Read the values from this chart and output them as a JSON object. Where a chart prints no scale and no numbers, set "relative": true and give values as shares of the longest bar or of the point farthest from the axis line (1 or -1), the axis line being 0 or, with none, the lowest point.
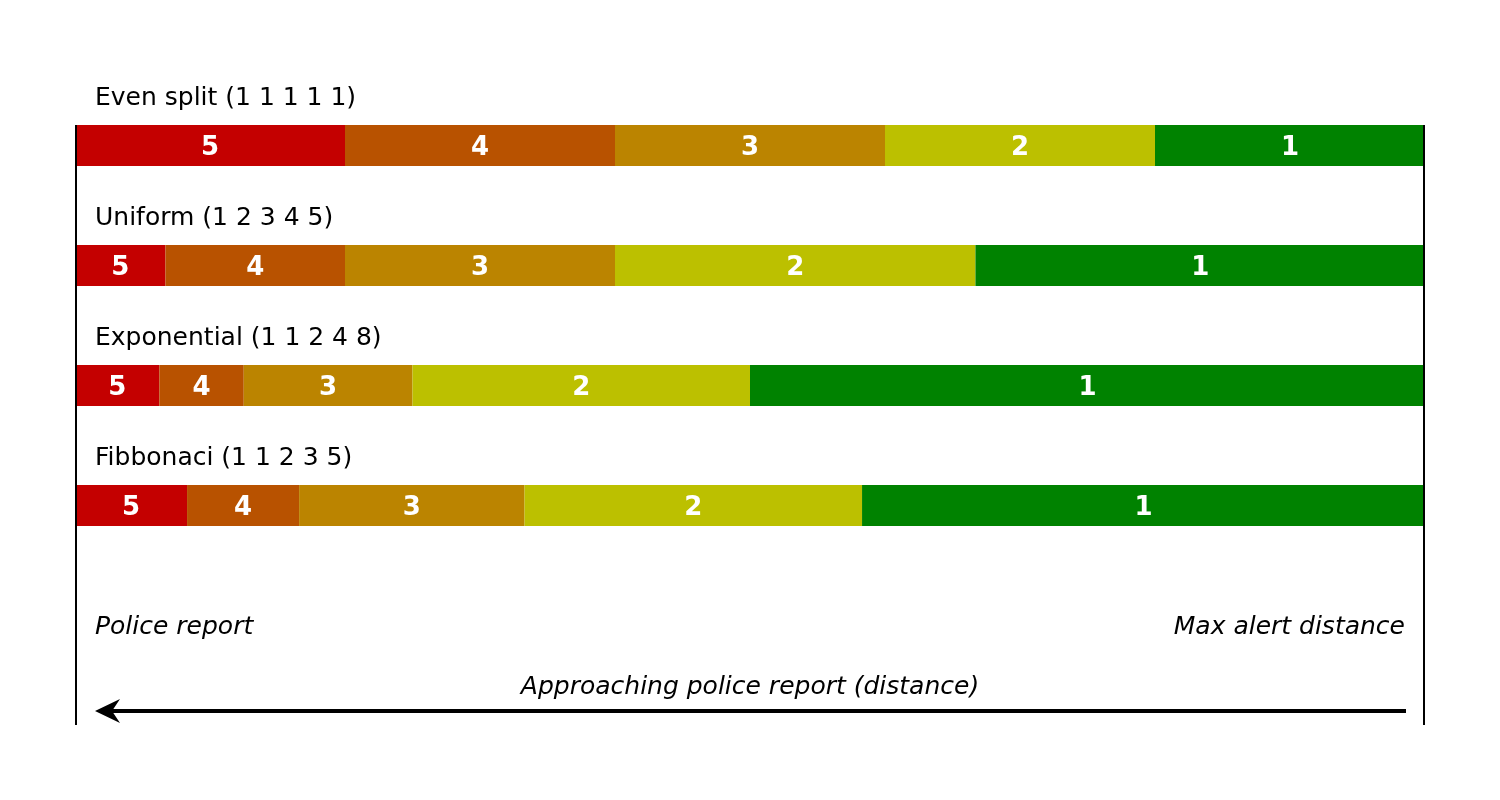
{
  "chart_data": {
    "type": "bar",
    "orientation": "horizontal",
    "stacked": true,
    "relative": true,
    "categories": [
      "Even split (1 1 1 1 1)",
      "Uniform (1 2 3 4 5)",
      "Exponential (1 1 2 4 8)",
      "Fibbonaci (1 1 2 3 5)"
    ],
    "series": [
      {
        "name": "5",
        "color": "#c40000",
        "values": [
          0.2,
          0.067,
          0.0625,
          0.083
        ]
      },
      {
        "name": "4",
        "color": "#b85200",
        "values": [
          0.2,
          0.133,
          0.0625,
          0.083
        ]
      },
      {
        "name": "3",
        "color": "#bb8400",
        "values": [
          0.2,
          0.2,
          0.125,
          0.167
        ]
      },
      {
        "name": "2",
        "color": "#bcc000",
        "values": [
          0.2,
          0.267,
          0.25,
          0.25
        ]
      },
      {
        "name": "1",
        "color": "#008200",
        "values": [
          0.2,
          0.333,
          0.5,
          0.417
        ]
      }
    ],
    "annotations": [
      "Police report",
      "Max alert distance",
      "Approaching police report (distance)"
    ]
  }
}
